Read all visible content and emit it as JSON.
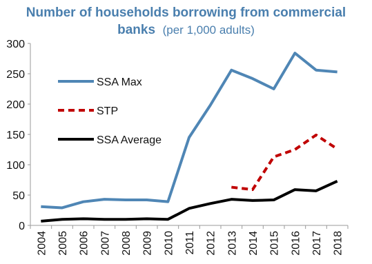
{
  "chart_data": {
    "type": "line",
    "title_line1": "Number of households borrowing from commercial",
    "title_line2_bold": "banks",
    "title_line2_rest": "(per 1,000 adults)",
    "x": [
      "2004",
      "2005",
      "2006",
      "2007",
      "2008",
      "2009",
      "2010",
      "2011",
      "2012",
      "2013",
      "2014",
      "2015",
      "2016",
      "2017",
      "2018"
    ],
    "ylim": [
      0,
      300
    ],
    "yticks": [
      0,
      50,
      100,
      150,
      200,
      250,
      300
    ],
    "grid": false,
    "legend_position": "left",
    "series": [
      {
        "name": "SSA Max",
        "color": "#4f86b5",
        "dash": "solid",
        "values": [
          31,
          29,
          39,
          43,
          42,
          42,
          39,
          145,
          198,
          256,
          242,
          225,
          284,
          256,
          253
        ]
      },
      {
        "name": "STP",
        "color": "#c00000",
        "dash": "dashed",
        "values": [
          null,
          null,
          null,
          null,
          null,
          null,
          null,
          null,
          null,
          63,
          59,
          113,
          125,
          149,
          126
        ]
      },
      {
        "name": "SSA Average",
        "color": "#000000",
        "dash": "solid",
        "values": [
          7,
          10,
          11,
          10,
          10,
          11,
          10,
          28,
          36,
          43,
          41,
          42,
          59,
          57,
          73
        ]
      }
    ]
  }
}
